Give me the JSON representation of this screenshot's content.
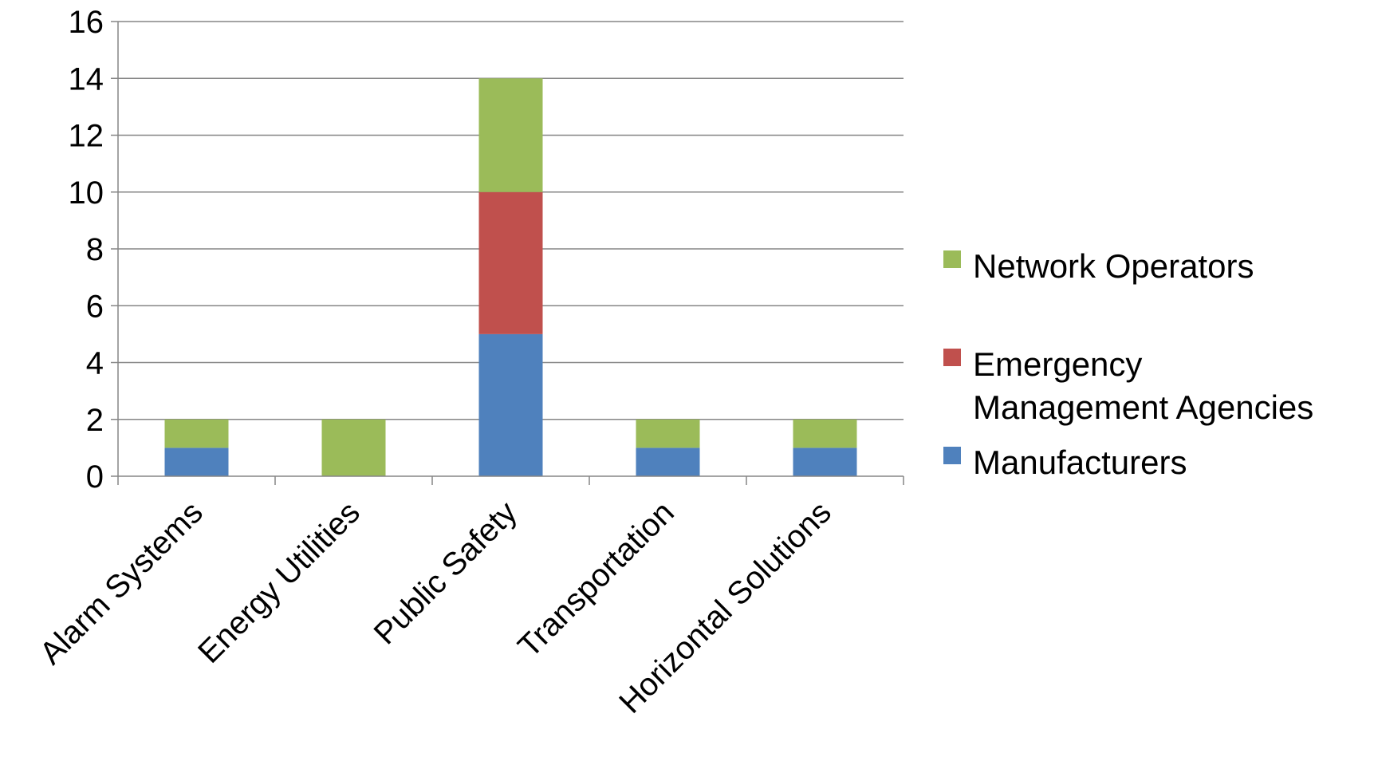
{
  "chart_data": {
    "type": "bar",
    "stacked": true,
    "title": "",
    "xlabel": "",
    "ylabel": "",
    "categories": [
      "Alarm Systems",
      "Energy Utilities",
      "Public Safety",
      "Transportation",
      "Horizontal Solutions"
    ],
    "series": [
      {
        "name": "Manufacturers",
        "color": "#4f81bd",
        "values": [
          1,
          0,
          5,
          1,
          1
        ]
      },
      {
        "name": "Emergency Management Agencies",
        "color": "#c0504d",
        "values": [
          0,
          0,
          5,
          0,
          0
        ]
      },
      {
        "name": "Network Operators",
        "color": "#9bbb59",
        "values": [
          1,
          2,
          4,
          1,
          1
        ]
      }
    ],
    "ylim": [
      0,
      16
    ],
    "yticks": [
      0,
      2,
      4,
      6,
      8,
      10,
      12,
      14,
      16
    ],
    "grid": true,
    "legend": {
      "position": "right",
      "order": [
        "Network Operators",
        "Emergency Management Agencies",
        "Manufacturers"
      ],
      "line_breaks": {
        "Emergency Management Agencies": [
          "Emergency",
          "Management Agencies"
        ]
      }
    }
  }
}
